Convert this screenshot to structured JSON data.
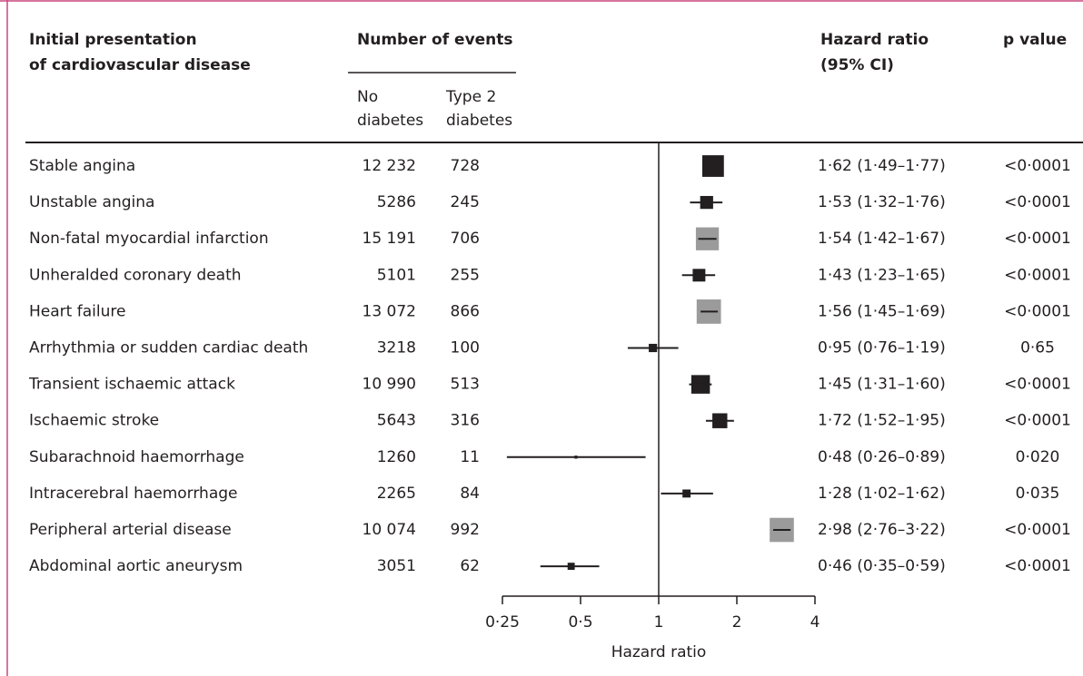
{
  "chart_data": {
    "type": "forest",
    "headers": {
      "name": [
        "Initial presentation",
        "of cardiovascular disease"
      ],
      "events": "Number of events",
      "no_diabetes": [
        "No",
        "diabetes"
      ],
      "type2": [
        "Type 2",
        "diabetes"
      ],
      "hr": [
        "Hazard ratio",
        "(95% CI)"
      ],
      "p": "p value"
    },
    "rows": [
      {
        "name": "Stable angina",
        "no_diabetes": "12 232",
        "type2": "728",
        "hr": 1.62,
        "lower": 1.49,
        "upper": 1.77,
        "hr_label": "1·62 (1·49–1·77)",
        "p": "<0·0001",
        "box_color": "#231f20"
      },
      {
        "name": "Unstable angina",
        "no_diabetes": "5286",
        "type2": "245",
        "hr": 1.53,
        "lower": 1.32,
        "upper": 1.76,
        "hr_label": "1·53 (1·32–1·76)",
        "p": "<0·0001",
        "box_color": "#231f20"
      },
      {
        "name": "Non-fatal myocardial infarction",
        "no_diabetes": "15 191",
        "type2": "706",
        "hr": 1.54,
        "lower": 1.42,
        "upper": 1.67,
        "hr_label": "1·54 (1·42–1·67)",
        "p": "<0·0001",
        "box_color": "#9b9b9b"
      },
      {
        "name": "Unheralded coronary death",
        "no_diabetes": "5101",
        "type2": "255",
        "hr": 1.43,
        "lower": 1.23,
        "upper": 1.65,
        "hr_label": "1·43 (1·23–1·65)",
        "p": "<0·0001",
        "box_color": "#231f20"
      },
      {
        "name": "Heart failure",
        "no_diabetes": "13 072",
        "type2": "866",
        "hr": 1.56,
        "lower": 1.45,
        "upper": 1.69,
        "hr_label": "1·56 (1·45–1·69)",
        "p": "<0·0001",
        "box_color": "#9b9b9b"
      },
      {
        "name": "Arrhythmia or sudden cardiac death",
        "no_diabetes": "3218",
        "type2": "100",
        "hr": 0.95,
        "lower": 0.76,
        "upper": 1.19,
        "hr_label": "0·95 (0·76–1·19)",
        "p": "0·65",
        "box_color": "#231f20"
      },
      {
        "name": "Transient ischaemic attack",
        "no_diabetes": "10 990",
        "type2": "513",
        "hr": 1.45,
        "lower": 1.31,
        "upper": 1.6,
        "hr_label": "1·45 (1·31–1·60)",
        "p": "<0·0001",
        "box_color": "#231f20"
      },
      {
        "name": "Ischaemic stroke",
        "no_diabetes": "5643",
        "type2": "316",
        "hr": 1.72,
        "lower": 1.52,
        "upper": 1.95,
        "hr_label": "1·72 (1·52–1·95)",
        "p": "<0·0001",
        "box_color": "#231f20"
      },
      {
        "name": "Subarachnoid haemorrhage",
        "no_diabetes": "1260",
        "type2": "11",
        "hr": 0.48,
        "lower": 0.26,
        "upper": 0.89,
        "hr_label": "0·48 (0·26–0·89)",
        "p": "0·020",
        "box_color": "#231f20"
      },
      {
        "name": "Intracerebral haemorrhage",
        "no_diabetes": "2265",
        "type2": "84",
        "hr": 1.28,
        "lower": 1.02,
        "upper": 1.62,
        "hr_label": "1·28 (1·02–1·62)",
        "p": "0·035",
        "box_color": "#231f20"
      },
      {
        "name": "Peripheral arterial disease",
        "no_diabetes": "10 074",
        "type2": "992",
        "hr": 2.98,
        "lower": 2.76,
        "upper": 3.22,
        "hr_label": "2·98 (2·76–3·22)",
        "p": "<0·0001",
        "box_color": "#9b9b9b"
      },
      {
        "name": "Abdominal aortic aneurysm",
        "no_diabetes": "3051",
        "type2": "62",
        "hr": 0.46,
        "lower": 0.35,
        "upper": 0.59,
        "hr_label": "0·46 (0·35–0·59)",
        "p": "<0·0001",
        "box_color": "#231f20"
      }
    ],
    "xlabel": "Hazard ratio",
    "xscale": "log",
    "xlim": [
      0.25,
      4
    ],
    "xticks": [
      {
        "value": 0.25,
        "label": "0·25"
      },
      {
        "value": 0.5,
        "label": "0·5"
      },
      1,
      2,
      4
    ],
    "reference_line": 1
  }
}
